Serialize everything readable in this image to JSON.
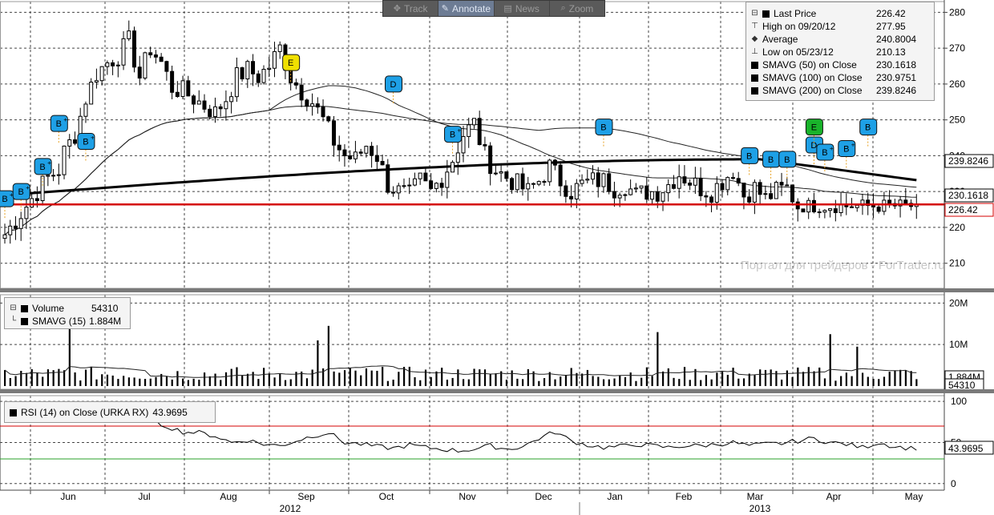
{
  "toolbar": {
    "items": [
      {
        "label": "Track",
        "icon": "crosshair-icon"
      },
      {
        "label": "Annotate",
        "icon": "pencil-icon",
        "active": true
      },
      {
        "label": "News",
        "icon": "news-icon"
      },
      {
        "label": "Zoom",
        "icon": "magnifier-icon"
      }
    ]
  },
  "price_legend": {
    "rows": [
      {
        "label": "Last Price",
        "value": "226.42"
      },
      {
        "label": "High on 09/20/12",
        "value": "277.95"
      },
      {
        "label": "Average",
        "value": "240.8004"
      },
      {
        "label": "Low on 05/23/12",
        "value": "210.13"
      },
      {
        "label": "SMAVG (50) on Close",
        "value": "230.1618"
      },
      {
        "label": "SMAVG (100) on Close",
        "value": "230.9751"
      },
      {
        "label": "SMAVG (200) on Close",
        "value": "239.8246"
      }
    ]
  },
  "volume_legend": {
    "rows": [
      {
        "label": "Volume",
        "value": "54310"
      },
      {
        "label": "SMAVG (15)",
        "value": "1.884M"
      }
    ]
  },
  "rsi_legend": {
    "label": "RSI (14) on Close (URKA RX)",
    "value": "43.9695"
  },
  "watermark": "Портал для трейдеров - ForTrader.ru",
  "colors": {
    "background": "#ffffff",
    "grid": "#444444",
    "price_line": "#000000",
    "sma200": "#000000",
    "last_price_line": "#d40000",
    "rsi_overbought": "#d40000",
    "rsi_oversold": "#2aa02a",
    "flag_b": "#1ea0e6",
    "flag_e": "#f0e000",
    "flag_e_green": "#19b32b",
    "panel_divider": "#7a7a7a"
  },
  "chart_data": [
    {
      "type": "candlestick",
      "title": "",
      "x_labels": [
        "Jun",
        "Jul",
        "Aug",
        "Sep",
        "Oct",
        "Nov",
        "Dec",
        "Jan",
        "Feb",
        "Mar",
        "Apr",
        "May"
      ],
      "year_labels": [
        "2012",
        "2013"
      ],
      "y_ticks": [
        210,
        220,
        230,
        240,
        250,
        260,
        270,
        280
      ],
      "ylim": [
        203,
        283
      ],
      "last_price": 226.42,
      "price_labels": [
        "239.8246",
        "230.1618",
        "226.42"
      ],
      "close_path": [
        [
          0,
          218
        ],
        [
          2,
          222
        ],
        [
          4,
          226
        ],
        [
          6,
          230
        ],
        [
          8,
          234
        ],
        [
          10,
          236
        ],
        [
          11,
          241
        ],
        [
          13,
          246
        ],
        [
          15,
          256
        ],
        [
          17,
          263
        ],
        [
          19,
          266
        ],
        [
          21,
          268
        ],
        [
          23,
          272
        ],
        [
          25,
          262
        ],
        [
          27,
          270
        ],
        [
          29,
          266
        ],
        [
          31,
          259
        ],
        [
          33,
          258
        ],
        [
          35,
          256
        ],
        [
          37,
          254
        ],
        [
          39,
          252
        ],
        [
          41,
          256
        ],
        [
          43,
          262
        ],
        [
          45,
          264
        ],
        [
          47,
          262
        ],
        [
          49,
          265
        ],
        [
          51,
          270
        ],
        [
          53,
          262
        ],
        [
          55,
          258
        ],
        [
          57,
          255
        ],
        [
          59,
          250
        ],
        [
          61,
          244
        ],
        [
          63,
          240
        ],
        [
          65,
          239
        ],
        [
          67,
          243
        ],
        [
          69,
          240
        ],
        [
          71,
          232
        ],
        [
          73,
          230
        ],
        [
          75,
          229
        ],
        [
          77,
          233
        ],
        [
          79,
          230
        ],
        [
          81,
          234
        ],
        [
          83,
          239
        ],
        [
          85,
          246
        ],
        [
          87,
          249
        ],
        [
          89,
          240
        ],
        [
          91,
          236
        ],
        [
          93,
          234
        ],
        [
          95,
          232
        ],
        [
          97,
          230
        ],
        [
          99,
          233
        ],
        [
          101,
          237
        ],
        [
          103,
          233
        ],
        [
          105,
          230
        ],
        [
          107,
          232
        ],
        [
          109,
          233
        ],
        [
          111,
          233
        ],
        [
          113,
          231
        ],
        [
          115,
          232
        ],
        [
          117,
          229
        ],
        [
          119,
          230
        ],
        [
          121,
          230
        ],
        [
          123,
          232
        ],
        [
          125,
          235
        ],
        [
          127,
          233
        ],
        [
          129,
          231
        ],
        [
          131,
          230
        ],
        [
          133,
          233
        ],
        [
          135,
          236
        ],
        [
          137,
          229
        ],
        [
          139,
          231
        ],
        [
          141,
          228
        ],
        [
          143,
          230
        ],
        [
          145,
          231
        ],
        [
          147,
          226
        ]
      ],
      "flags": [
        {
          "label": "B",
          "sup": "+",
          "x": 0,
          "y": 228
        },
        {
          "label": "B",
          "sup": "+",
          "x": 3,
          "y": 230
        },
        {
          "label": "B",
          "sup": "+",
          "x": 7,
          "y": 237
        },
        {
          "label": "B",
          "sup": "+",
          "x": 10,
          "y": 249
        },
        {
          "label": "B",
          "sup": "+",
          "x": 15,
          "y": 244
        },
        {
          "label": "E",
          "x": 53,
          "y": 266,
          "color": "yellow"
        },
        {
          "label": "D",
          "x": 72,
          "y": 260
        },
        {
          "label": "B",
          "sup": "+",
          "x": 83,
          "y": 246
        },
        {
          "label": "B",
          "x": 111,
          "y": 248
        },
        {
          "label": "B",
          "x": 138,
          "y": 240
        },
        {
          "label": "B",
          "x": 142,
          "y": 239
        },
        {
          "label": "B",
          "x": 145,
          "y": 239
        },
        {
          "label": "D",
          "x": 150,
          "y": 243
        },
        {
          "label": "B",
          "sup": "+",
          "x": 152,
          "y": 241
        },
        {
          "label": "B",
          "sup": "+",
          "x": 156,
          "y": 242
        },
        {
          "label": "E",
          "x": 150,
          "y": 248,
          "color": "green"
        },
        {
          "label": "B",
          "x": 160,
          "y": 248
        }
      ]
    },
    {
      "type": "bar",
      "title": "",
      "y_ticks": [
        "10M",
        "20M"
      ],
      "ylim": [
        0,
        22
      ],
      "units": "M",
      "price_labels": [
        "1.884M",
        "54310"
      ],
      "spikes": [
        [
          12,
          21
        ],
        [
          58,
          11
        ],
        [
          60,
          14.5
        ],
        [
          121,
          13
        ],
        [
          153,
          12.5
        ],
        [
          158,
          9.5
        ]
      ]
    },
    {
      "type": "line",
      "title": "",
      "y_ticks": [
        0,
        50,
        100
      ],
      "ylim": [
        -8,
        107
      ],
      "levels": [
        70,
        30
      ],
      "price_label": "43.9695",
      "rsi_path": [
        [
          0,
          78
        ],
        [
          3,
          82
        ],
        [
          6,
          78
        ],
        [
          9,
          88
        ],
        [
          12,
          80
        ],
        [
          15,
          86
        ],
        [
          18,
          80
        ],
        [
          21,
          85
        ],
        [
          24,
          82
        ],
        [
          27,
          76
        ],
        [
          30,
          70
        ],
        [
          33,
          63
        ],
        [
          36,
          62
        ],
        [
          39,
          58
        ],
        [
          42,
          50
        ],
        [
          45,
          53
        ],
        [
          48,
          48
        ],
        [
          51,
          46
        ],
        [
          54,
          52
        ],
        [
          57,
          58
        ],
        [
          60,
          62
        ],
        [
          63,
          50
        ],
        [
          66,
          48
        ],
        [
          69,
          45
        ],
        [
          72,
          43
        ],
        [
          75,
          47
        ],
        [
          78,
          44
        ],
        [
          81,
          42
        ],
        [
          84,
          40
        ],
        [
          87,
          42
        ],
        [
          90,
          46
        ],
        [
          93,
          42
        ],
        [
          96,
          45
        ],
        [
          99,
          55
        ],
        [
          102,
          63
        ],
        [
          105,
          52
        ],
        [
          108,
          47
        ],
        [
          111,
          44
        ],
        [
          114,
          45
        ],
        [
          117,
          48
        ],
        [
          120,
          46
        ],
        [
          123,
          44
        ],
        [
          126,
          46
        ],
        [
          129,
          46
        ],
        [
          132,
          48
        ],
        [
          135,
          50
        ],
        [
          138,
          46
        ],
        [
          141,
          48
        ],
        [
          144,
          49
        ],
        [
          147,
          52
        ],
        [
          150,
          55
        ],
        [
          153,
          50
        ],
        [
          156,
          48
        ],
        [
          159,
          44
        ],
        [
          162,
          50
        ],
        [
          165,
          45
        ],
        [
          168,
          43
        ],
        [
          171,
          44
        ]
      ]
    }
  ]
}
